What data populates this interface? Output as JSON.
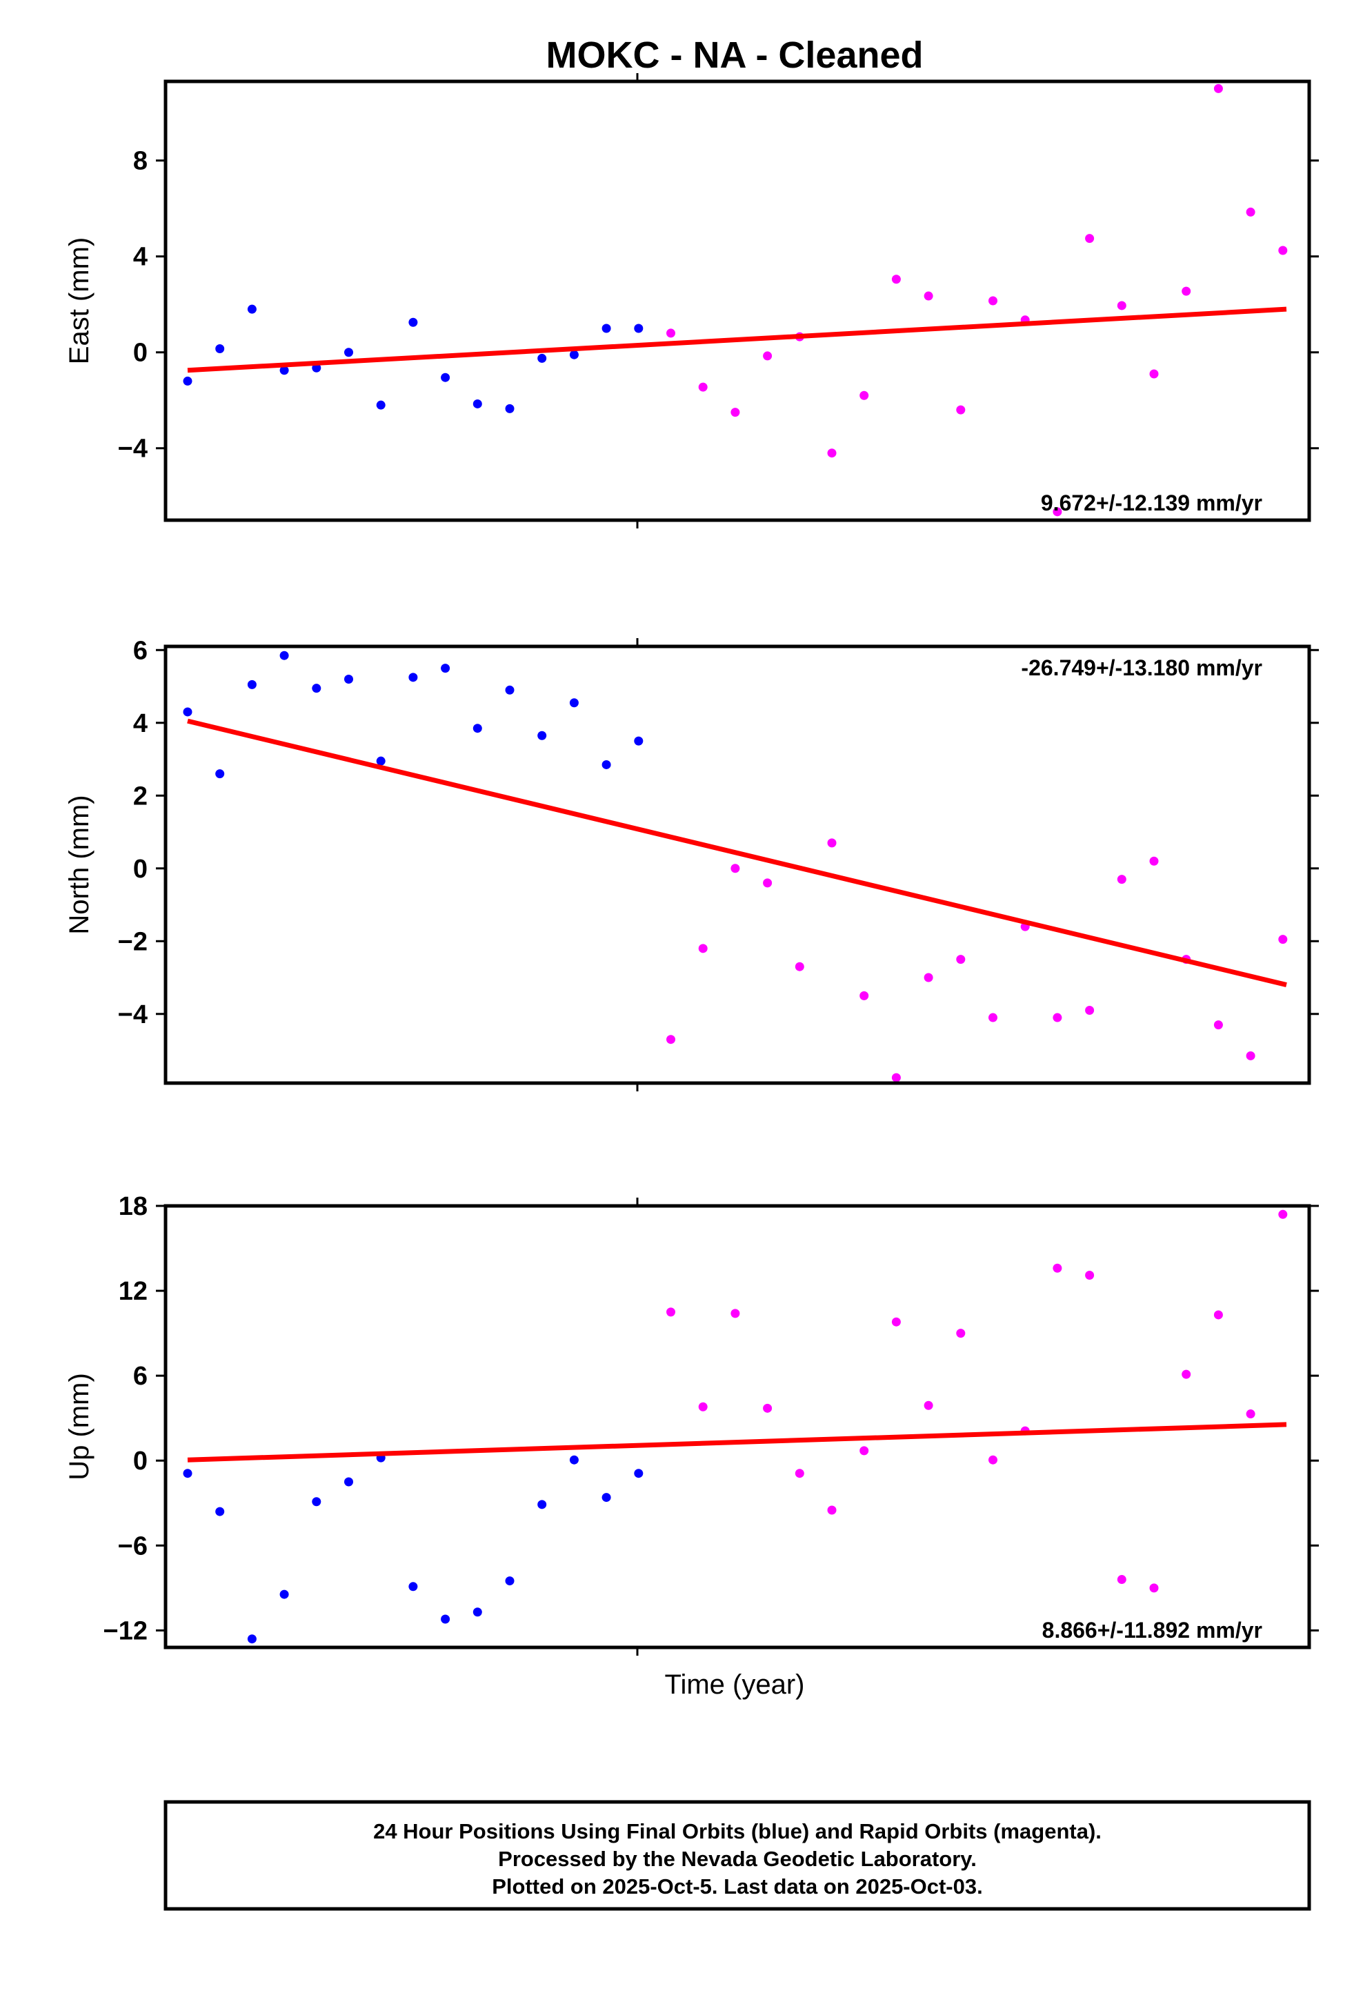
{
  "chart_data": {
    "type": "scatter",
    "title": "MOKC  - NA - Cleaned",
    "xlabel": "Time (year)",
    "colors": {
      "final": "#0000ff",
      "rapid": "#ff00ff",
      "trend": "#ff0000"
    },
    "panels": [
      {
        "id": "east",
        "ylabel": "East (mm)",
        "ylim": [
          -7,
          11.3
        ],
        "yticks": [
          8,
          4,
          0,
          -4
        ],
        "ytick_labels": [
          "8",
          "4",
          "0",
          "−4"
        ],
        "rate_label": "9.672+/-12.139 mm/yr",
        "rate_position": "bottom-right",
        "trend": [
          -0.75,
          1.8
        ],
        "final": [
          -1.2,
          0.15,
          1.8,
          -0.75,
          -0.65,
          0.0,
          -2.2,
          1.25,
          -1.05,
          -2.15,
          -2.35,
          -0.25,
          -0.1,
          1.0,
          1.0
        ],
        "rapid": [
          0.8,
          -1.45,
          -2.5,
          -0.15,
          0.65,
          -4.2,
          -1.8,
          3.05,
          2.35,
          -2.4,
          2.15,
          1.35,
          -6.65,
          4.75,
          1.95,
          -0.9,
          2.55,
          11.0,
          5.85,
          4.25
        ]
      },
      {
        "id": "north",
        "ylabel": "North (mm)",
        "ylim": [
          -5.9,
          6.1
        ],
        "yticks": [
          6,
          4,
          2,
          0,
          -2,
          -4
        ],
        "ytick_labels": [
          "6",
          "4",
          "2",
          "0",
          "−2",
          "−4"
        ],
        "rate_label": "-26.749+/-13.180 mm/yr",
        "rate_position": "top-right",
        "trend": [
          4.05,
          -3.2
        ],
        "final": [
          4.3,
          2.6,
          5.05,
          5.85,
          4.95,
          5.2,
          2.95,
          5.25,
          5.5,
          3.85,
          4.9,
          3.65,
          4.55,
          2.85,
          3.5
        ],
        "rapid": [
          -4.7,
          -2.2,
          0.0,
          -0.4,
          -2.7,
          0.7,
          -3.5,
          -5.75,
          -3.0,
          -2.5,
          -4.1,
          -1.6,
          -4.1,
          -3.9,
          -0.3,
          0.2,
          -2.5,
          -4.3,
          -5.15,
          -1.95
        ]
      },
      {
        "id": "up",
        "ylabel": "Up (mm)",
        "ylim": [
          -13.2,
          18
        ],
        "yticks": [
          18,
          12,
          6,
          0,
          -6,
          -12
        ],
        "ytick_labels": [
          "18",
          "12",
          "6",
          "0",
          "−6",
          "−12"
        ],
        "rate_label": "8.866+/-11.892 mm/yr",
        "rate_position": "bottom-right",
        "trend": [
          0.05,
          2.55
        ],
        "final": [
          -0.9,
          -3.6,
          -12.6,
          -9.45,
          -2.9,
          -1.5,
          0.2,
          -8.9,
          -11.2,
          -10.7,
          -8.5,
          -3.1,
          0.05,
          -2.6,
          -0.9
        ],
        "rapid": [
          10.5,
          3.8,
          10.4,
          3.7,
          -0.9,
          -3.5,
          0.7,
          9.8,
          3.9,
          9.0,
          0.05,
          2.1,
          13.6,
          13.1,
          -8.4,
          -9.0,
          6.1,
          10.3,
          3.3,
          17.4
        ]
      }
    ],
    "footer": [
      "24 Hour Positions Using Final Orbits (blue) and Rapid Orbits (magenta).",
      "Processed by the Nevada Geodetic Laboratory.",
      "Plotted on 2025-Oct-5. Last data on 2025-Oct-03."
    ]
  }
}
